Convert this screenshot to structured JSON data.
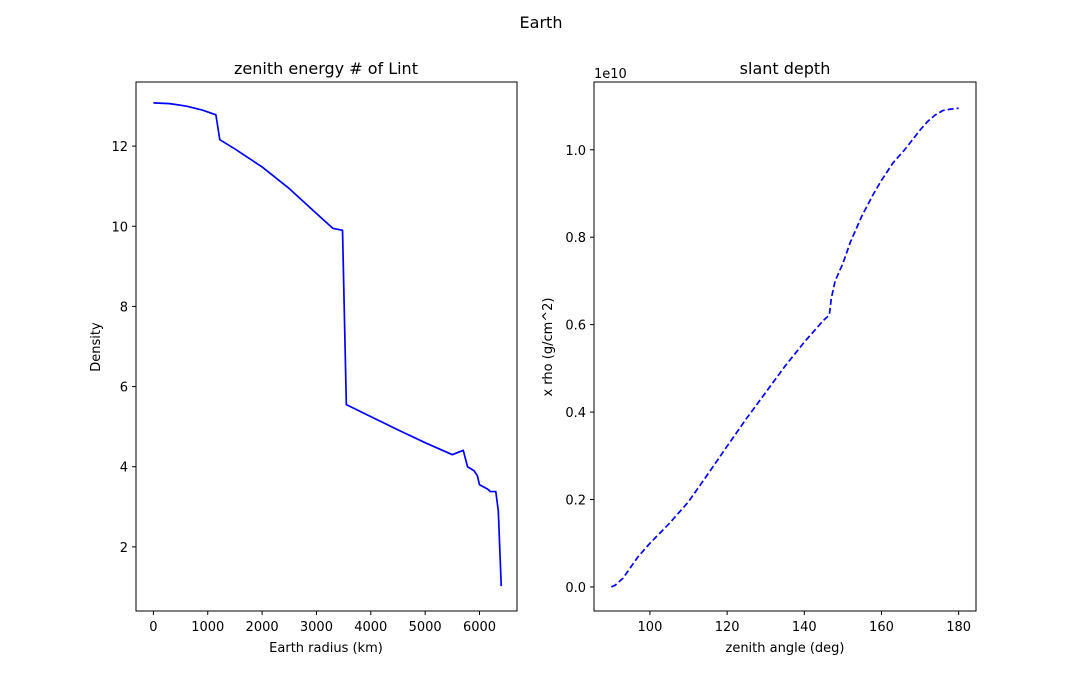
{
  "figure": {
    "suptitle": "Earth"
  },
  "chart_data": [
    {
      "type": "line",
      "title": "zenith energy # of Lint",
      "xlabel": "Earth radius (km)",
      "ylabel": "Density",
      "xlim": [
        -320,
        6690
      ],
      "ylim": [
        0.4,
        13.6
      ],
      "xticks": [
        0,
        1000,
        2000,
        3000,
        4000,
        5000,
        6000
      ],
      "yticks": [
        2,
        4,
        6,
        8,
        10,
        12
      ],
      "xtick_labels": [
        "0",
        "1000",
        "2000",
        "3000",
        "4000",
        "5000",
        "6000"
      ],
      "ytick_labels": [
        "2",
        "4",
        "6",
        "8",
        "10",
        "12"
      ],
      "offset_text": "",
      "grid": false,
      "series": [
        {
          "color": "#0000ff",
          "linestyle": "solid",
          "x": [
            0,
            300,
            600,
            900,
            1150,
            1222,
            1500,
            2000,
            2500,
            3000,
            3300,
            3480,
            3550,
            4000,
            4500,
            5000,
            5500,
            5701,
            5780,
            5900,
            5960,
            6000,
            6151,
            6200,
            6300,
            6346,
            6400
          ],
          "y": [
            13.08,
            13.06,
            13.0,
            12.9,
            12.78,
            12.16,
            11.93,
            11.48,
            10.94,
            10.32,
            9.95,
            9.9,
            5.55,
            5.25,
            4.92,
            4.6,
            4.3,
            4.41,
            4.0,
            3.9,
            3.78,
            3.55,
            3.44,
            3.38,
            3.38,
            2.9,
            1.02
          ]
        }
      ]
    },
    {
      "type": "line",
      "title": "slant depth",
      "xlabel": "zenith angle (deg)",
      "ylabel": "x rho (g/cm^2)",
      "xlim": [
        85.5,
        184.5
      ],
      "ylim": [
        -0.055,
        1.155
      ],
      "xticks": [
        100,
        120,
        140,
        160,
        180
      ],
      "yticks": [
        0.0,
        0.2,
        0.4,
        0.6,
        0.8,
        1.0
      ],
      "xtick_labels": [
        "100",
        "120",
        "140",
        "160",
        "180"
      ],
      "ytick_labels": [
        "0.0",
        "0.2",
        "0.4",
        "0.6",
        "0.8",
        "1.0"
      ],
      "offset_text": "1e10",
      "grid": false,
      "series": [
        {
          "color": "#0000ff",
          "linestyle": "dashed",
          "x": [
            90,
            91,
            93,
            95,
            97,
            100,
            105,
            110,
            115,
            120,
            125,
            130,
            135,
            140,
            145,
            146.5,
            147,
            148,
            150,
            152,
            155,
            158,
            160,
            163,
            166,
            170,
            172,
            174,
            176,
            178,
            180
          ],
          "y": [
            0.0,
            0.004,
            0.02,
            0.045,
            0.07,
            0.1,
            0.145,
            0.195,
            0.258,
            0.322,
            0.385,
            0.445,
            0.505,
            0.56,
            0.61,
            0.622,
            0.66,
            0.7,
            0.74,
            0.79,
            0.85,
            0.9,
            0.93,
            0.97,
            1.0,
            1.045,
            1.065,
            1.08,
            1.09,
            1.093,
            1.095
          ]
        }
      ]
    }
  ]
}
